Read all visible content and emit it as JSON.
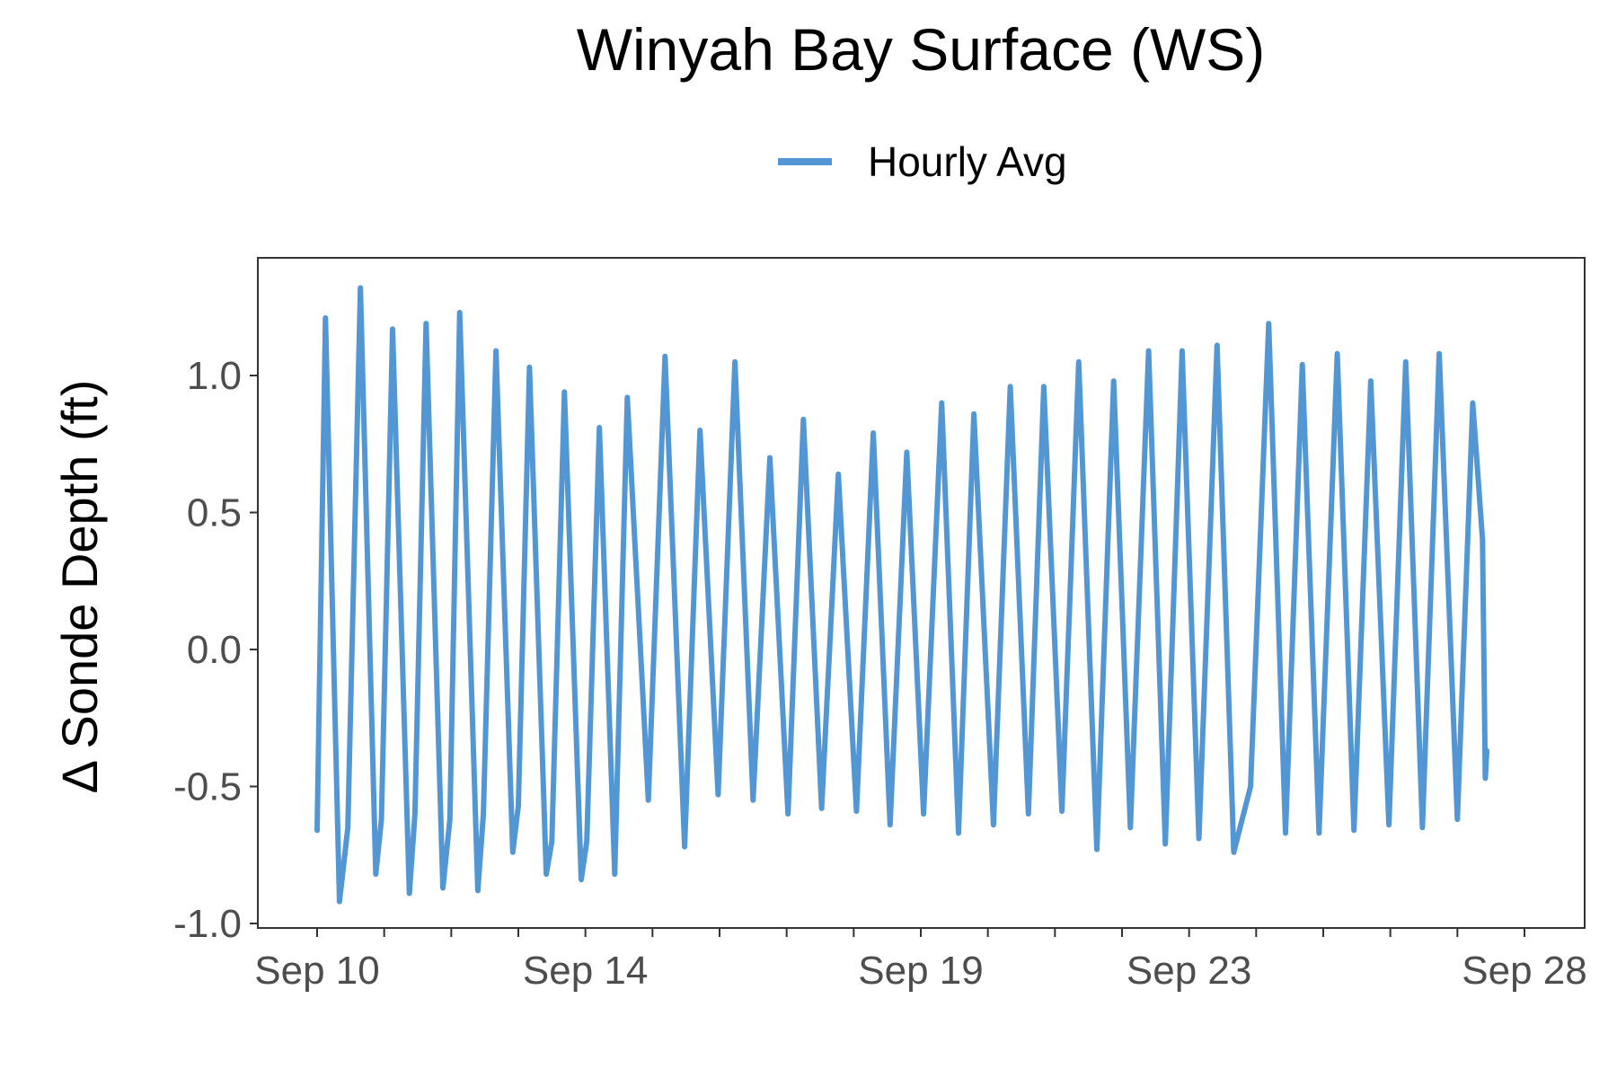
{
  "chart_data": {
    "type": "line",
    "title": "Winyah Bay Surface (WS)",
    "ylabel": "Δ Sonde Depth (ft)",
    "xlabel": "",
    "legend": {
      "placement": "top-center"
    },
    "grid": false,
    "xlim": [
      "2023-09-09",
      "2023-09-28"
    ],
    "ylim": [
      -1.0,
      1.4
    ],
    "x_ticks": [
      {
        "date": "2023-09-10",
        "label": "Sep 10"
      },
      {
        "date": "2023-09-11",
        "label": ""
      },
      {
        "date": "2023-09-12",
        "label": ""
      },
      {
        "date": "2023-09-13",
        "label": ""
      },
      {
        "date": "2023-09-14",
        "label": "Sep 14"
      },
      {
        "date": "2023-09-15",
        "label": ""
      },
      {
        "date": "2023-09-16",
        "label": ""
      },
      {
        "date": "2023-09-17",
        "label": ""
      },
      {
        "date": "2023-09-18",
        "label": ""
      },
      {
        "date": "2023-09-19",
        "label": "Sep 19"
      },
      {
        "date": "2023-09-20",
        "label": ""
      },
      {
        "date": "2023-09-21",
        "label": ""
      },
      {
        "date": "2023-09-22",
        "label": ""
      },
      {
        "date": "2023-09-23",
        "label": "Sep 23"
      },
      {
        "date": "2023-09-24",
        "label": ""
      },
      {
        "date": "2023-09-25",
        "label": ""
      },
      {
        "date": "2023-09-26",
        "label": ""
      },
      {
        "date": "2023-09-27",
        "label": ""
      },
      {
        "date": "2023-09-28",
        "label": "Sep 28"
      }
    ],
    "y_ticks": [
      {
        "value": 1.0,
        "label": "1.0"
      },
      {
        "value": 0.5,
        "label": "0.5"
      },
      {
        "value": 0.0,
        "label": "0.0"
      },
      {
        "value": -0.5,
        "label": "-0.5"
      },
      {
        "value": -1.0,
        "label": "-1.0"
      }
    ],
    "series": [
      {
        "name": "Hourly Avg",
        "color": "#5297D3",
        "points": [
          [
            "2023-09-10 00:00",
            -0.66
          ],
          [
            "2023-09-10 03:00",
            1.21
          ],
          [
            "2023-09-10 08:00",
            -0.92
          ],
          [
            "2023-09-10 11:00",
            -0.65
          ],
          [
            "2023-09-10 15:30",
            1.32
          ],
          [
            "2023-09-10 21:00",
            -0.82
          ],
          [
            "2023-09-10 23:00",
            -0.62
          ],
          [
            "2023-09-11 03:00",
            1.17
          ],
          [
            "2023-09-11 09:00",
            -0.89
          ],
          [
            "2023-09-11 11:00",
            -0.6
          ],
          [
            "2023-09-11 15:00",
            1.19
          ],
          [
            "2023-09-11 21:00",
            -0.87
          ],
          [
            "2023-09-11 23:30",
            -0.62
          ],
          [
            "2023-09-12 03:00",
            1.23
          ],
          [
            "2023-09-12 09:30",
            -0.88
          ],
          [
            "2023-09-12 11:30",
            -0.6
          ],
          [
            "2023-09-12 16:00",
            1.09
          ],
          [
            "2023-09-12 22:00",
            -0.74
          ],
          [
            "2023-09-13 00:00",
            -0.57
          ],
          [
            "2023-09-13 04:00",
            1.03
          ],
          [
            "2023-09-13 10:00",
            -0.82
          ],
          [
            "2023-09-13 12:00",
            -0.7
          ],
          [
            "2023-09-13 16:30",
            0.94
          ],
          [
            "2023-09-13 22:30",
            -0.84
          ],
          [
            "2023-09-14 00:30",
            -0.7
          ],
          [
            "2023-09-14 05:00",
            0.81
          ],
          [
            "2023-09-14 10:30",
            -0.82
          ],
          [
            "2023-09-14 15:00",
            0.92
          ],
          [
            "2023-09-14 22:30",
            -0.55
          ],
          [
            "2023-09-15 04:30",
            1.07
          ],
          [
            "2023-09-15 11:30",
            -0.72
          ],
          [
            "2023-09-15 17:00",
            0.8
          ],
          [
            "2023-09-15 23:30",
            -0.53
          ],
          [
            "2023-09-16 05:30",
            1.05
          ],
          [
            "2023-09-16 12:00",
            -0.55
          ],
          [
            "2023-09-16 18:00",
            0.7
          ],
          [
            "2023-09-17 00:30",
            -0.6
          ],
          [
            "2023-09-17 06:00",
            0.84
          ],
          [
            "2023-09-17 12:30",
            -0.58
          ],
          [
            "2023-09-17 18:30",
            0.64
          ],
          [
            "2023-09-18 01:00",
            -0.59
          ],
          [
            "2023-09-18 07:00",
            0.79
          ],
          [
            "2023-09-18 13:00",
            -0.64
          ],
          [
            "2023-09-18 19:00",
            0.72
          ],
          [
            "2023-09-19 01:00",
            -0.6
          ],
          [
            "2023-09-19 07:30",
            0.9
          ],
          [
            "2023-09-19 13:30",
            -0.67
          ],
          [
            "2023-09-19 19:00",
            0.86
          ],
          [
            "2023-09-20 02:00",
            -0.64
          ],
          [
            "2023-09-20 08:00",
            0.96
          ],
          [
            "2023-09-20 14:30",
            -0.6
          ],
          [
            "2023-09-20 20:00",
            0.96
          ],
          [
            "2023-09-21 02:30",
            -0.59
          ],
          [
            "2023-09-21 08:30",
            1.05
          ],
          [
            "2023-09-21 15:00",
            -0.73
          ],
          [
            "2023-09-21 21:00",
            0.98
          ],
          [
            "2023-09-22 03:00",
            -0.65
          ],
          [
            "2023-09-22 09:30",
            1.09
          ],
          [
            "2023-09-22 15:30",
            -0.71
          ],
          [
            "2023-09-22 21:30",
            1.09
          ],
          [
            "2023-09-23 03:30",
            -0.69
          ],
          [
            "2023-09-23 10:00",
            1.11
          ],
          [
            "2023-09-23 16:00",
            -0.74
          ],
          [
            "2023-09-23 22:00",
            -0.5
          ],
          [
            "2023-09-24 04:30",
            1.19
          ],
          [
            "2023-09-24 10:30",
            -0.67
          ],
          [
            "2023-09-24 16:30",
            1.04
          ],
          [
            "2023-09-24 22:30",
            -0.67
          ],
          [
            "2023-09-25 05:00",
            1.08
          ],
          [
            "2023-09-25 11:00",
            -0.66
          ],
          [
            "2023-09-25 17:00",
            0.98
          ],
          [
            "2023-09-25 23:30",
            -0.64
          ],
          [
            "2023-09-26 05:30",
            1.05
          ],
          [
            "2023-09-26 11:30",
            -0.65
          ],
          [
            "2023-09-26 17:30",
            1.08
          ],
          [
            "2023-09-27 00:00",
            -0.62
          ],
          [
            "2023-09-27 05:30",
            0.9
          ],
          [
            "2023-09-27 09:00",
            0.4
          ],
          [
            "2023-09-27 10:00",
            -0.47
          ],
          [
            "2023-09-27 10:30",
            -0.37
          ]
        ]
      }
    ]
  }
}
